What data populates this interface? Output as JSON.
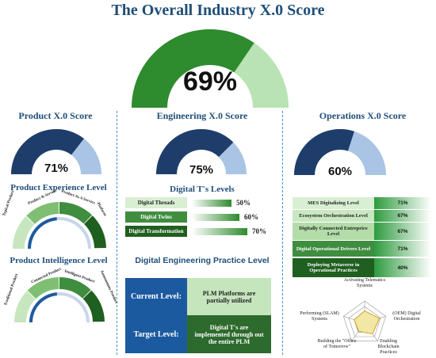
{
  "header": {
    "title": "The Overall Industry X.0 Score"
  },
  "overall": {
    "value_label": "69%",
    "value": 69,
    "colors": {
      "fill": "#2e8b2e",
      "rest": "#b9e3b4"
    }
  },
  "product": {
    "title": "Product X.0 Score",
    "value_label": "71%",
    "value": 71,
    "experience_title": "Product Experience Level",
    "experience_stages": [
      "Typical Product",
      "Product & Service",
      "Product As A Service",
      "Platform"
    ],
    "intelligence_title": "Product Intelligence Level",
    "intelligence_stages": [
      "Traditional Product",
      "Connected Product",
      "Intelligent Product",
      "Autonomous Product"
    ]
  },
  "engineering": {
    "title": "Engineering X.0 Score",
    "value_label": "75%",
    "value": 75,
    "threads_title": "Digital T's Levels",
    "threads": [
      {
        "label": "Digital Threads",
        "value_label": "50%",
        "value": 50
      },
      {
        "label": "Digital Twins",
        "value_label": "60%",
        "value": 60
      },
      {
        "label": "Digital Transformation",
        "value_label": "70%",
        "value": 70
      }
    ],
    "practice_title": "Digital Engineering Practice Level",
    "current_label": "Current Level:",
    "current_text": "PLM Platforms are partially utilized",
    "target_label": "Target Level:",
    "target_text": "Digital T's are implemented through out the entire PLM"
  },
  "operations": {
    "title": "Operations X.0 Score",
    "value_label": "60%",
    "value": 60,
    "levels": [
      {
        "label": "MES Digitalizing Level",
        "value_label": "71%",
        "value": 71
      },
      {
        "label": "Ecosystem Orchestration Level",
        "value_label": "67%",
        "value": 67
      },
      {
        "label": "Digitally Connected Entreprice Level",
        "value_label": "67%",
        "value": 67
      },
      {
        "label": "Digital Operational Drivers Level",
        "value_label": "71%",
        "value": 71
      },
      {
        "label": "Deploying Metaverse  in Operational Practices",
        "value_label": "40%",
        "value": 40
      }
    ],
    "radar_labels": [
      "Activating Telematics Systems",
      "(OEM) Digital Orchestration",
      "Enabling Blockchain Practices",
      "Building the \"Office of Tomorrow\"",
      "Performing (SLAM) Systems"
    ]
  },
  "colors": {
    "navy": "#1f3d6b",
    "light_blue": "#a9c4e4",
    "dark_green": "#2d6a2d",
    "light_green": "#c7e6bf",
    "accent_blue": "#1f4e79"
  }
}
